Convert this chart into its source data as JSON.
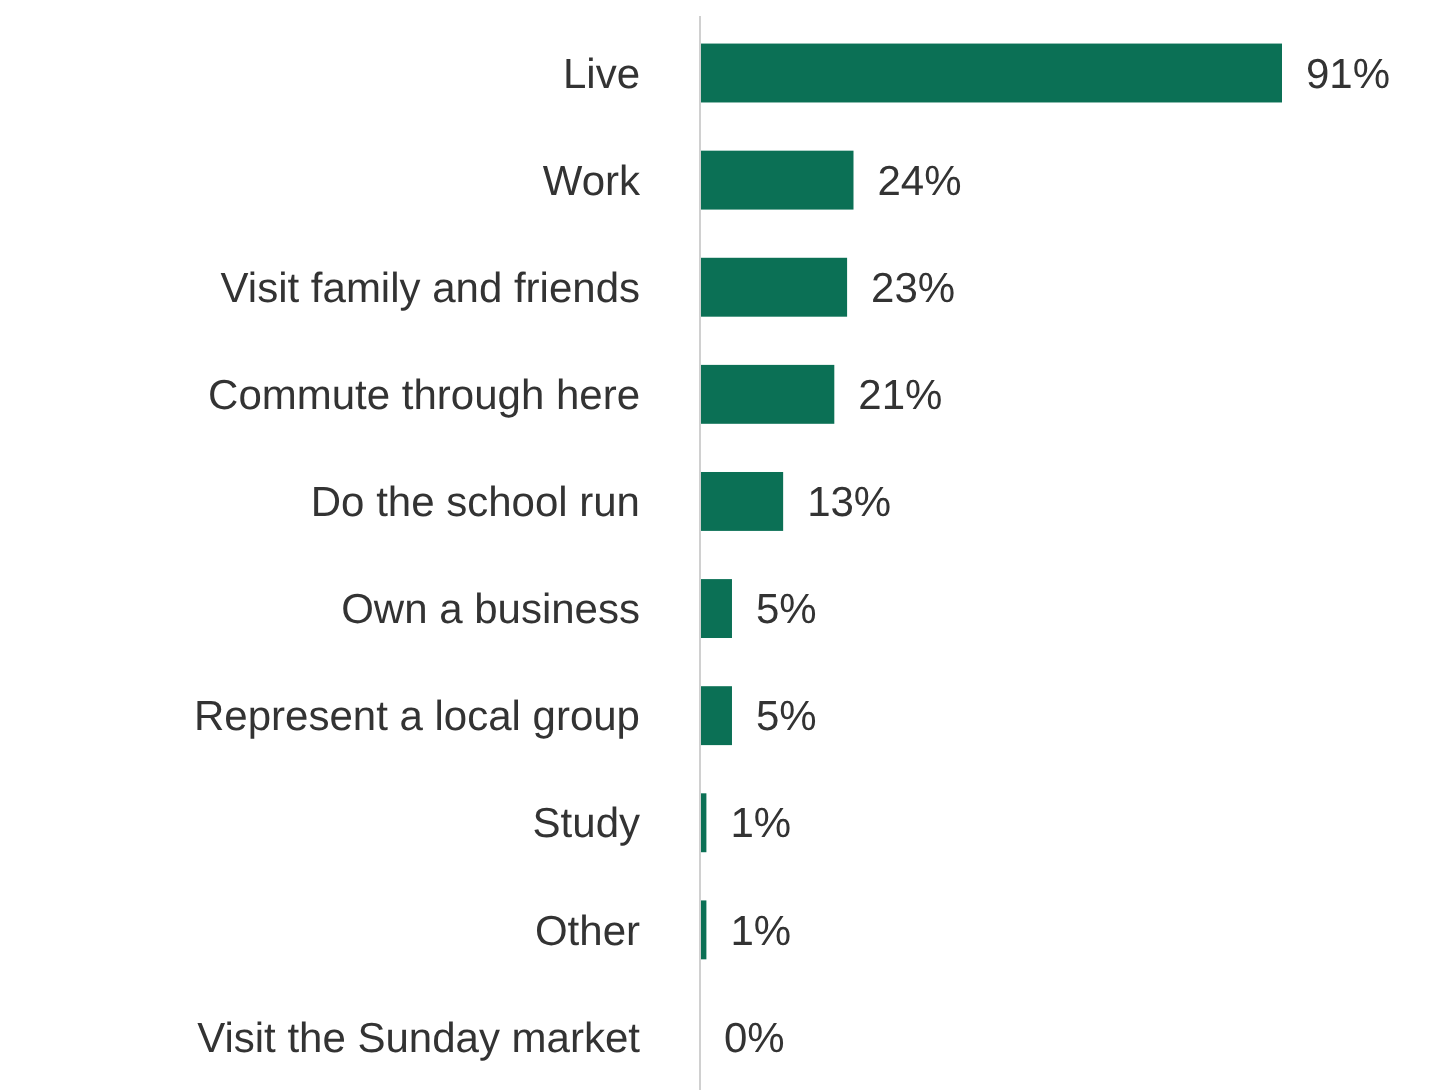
{
  "chart_data": {
    "type": "bar",
    "orientation": "horizontal",
    "categories": [
      "Live",
      "Work",
      "Visit family and friends",
      "Commute through here",
      "Do the school run",
      "Own a business",
      "Represent a local group",
      "Study",
      "Other",
      "Visit the Sunday market"
    ],
    "values": [
      91,
      24,
      23,
      21,
      13,
      5,
      5,
      1,
      1,
      0
    ],
    "color": "#0b7055",
    "value_labels": [
      "91%",
      "24%",
      "23%",
      "21%",
      "13%",
      "5%",
      "5%",
      "1%",
      "1%",
      "0%"
    ]
  }
}
